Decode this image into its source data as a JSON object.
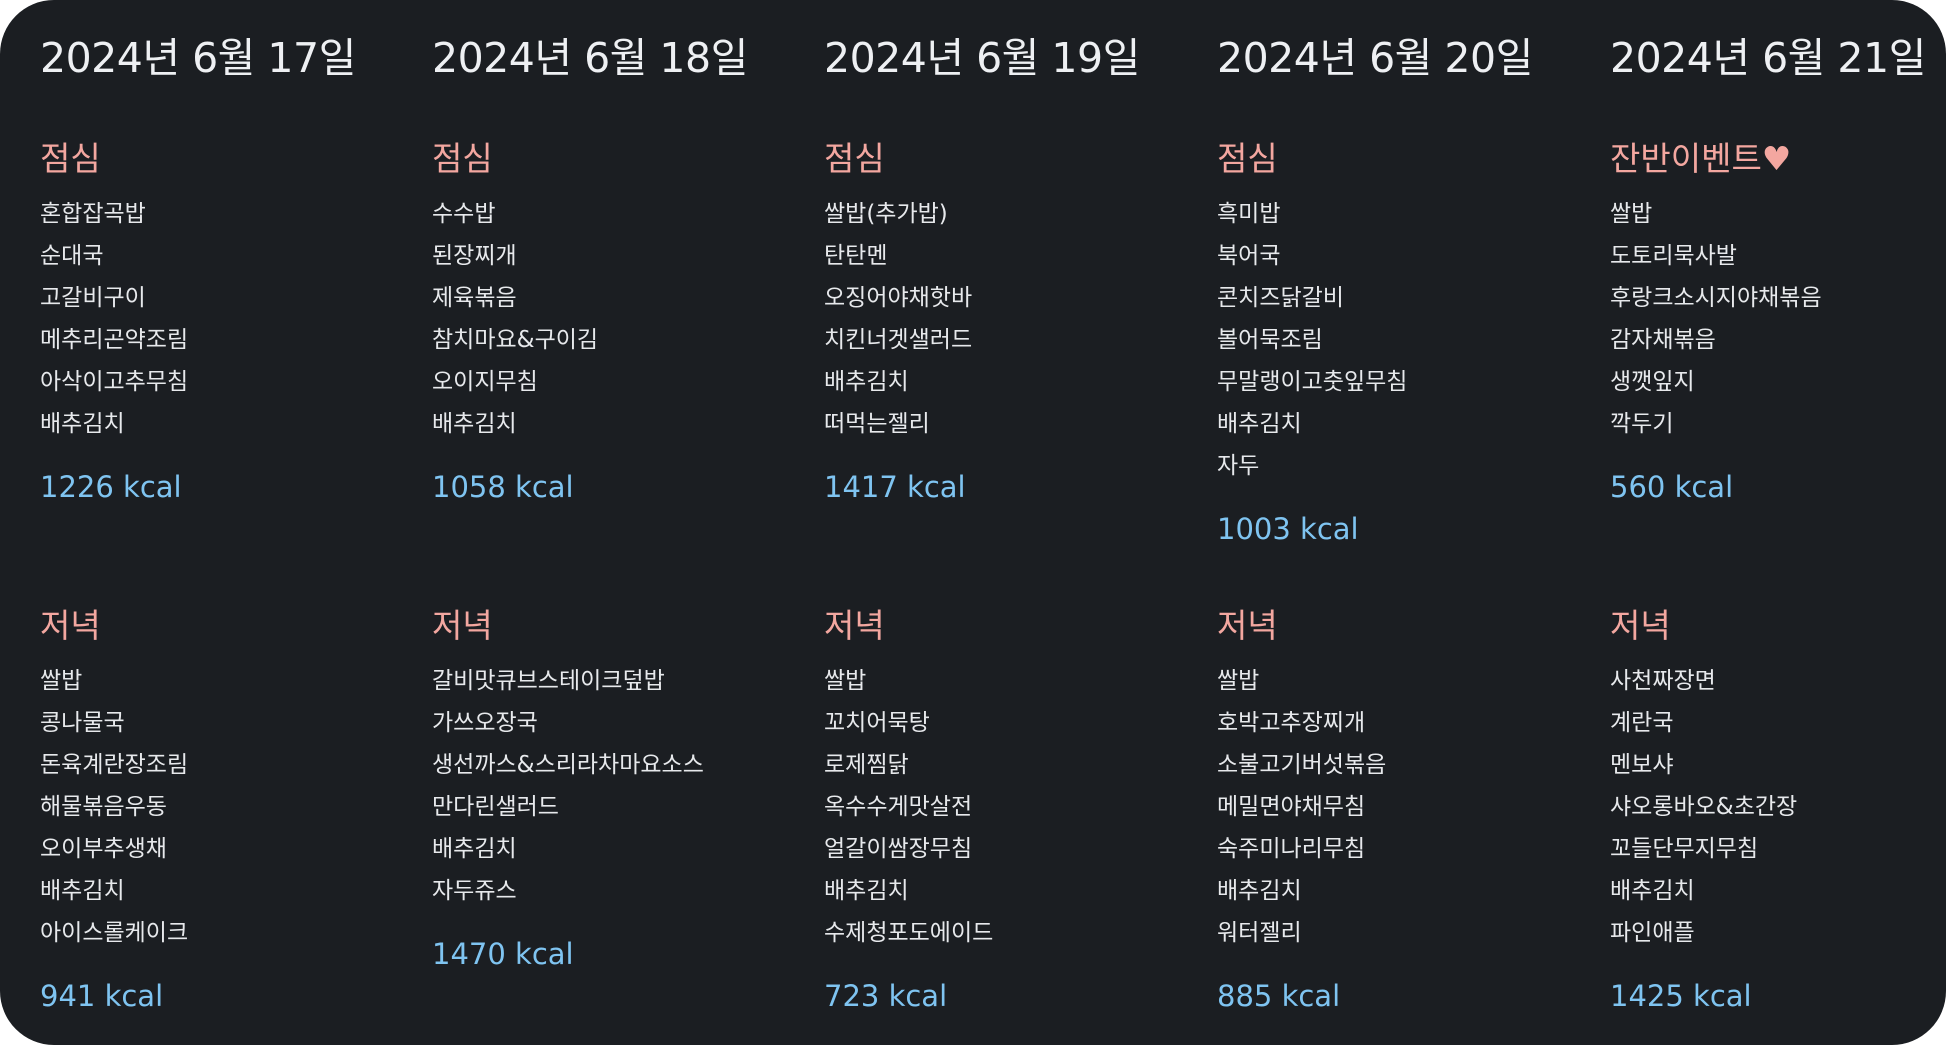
{
  "days": [
    {
      "date": "2024년 6월 17일",
      "lunch": {
        "title": "점심",
        "items": [
          "혼합잡곡밥",
          "순대국",
          "고갈비구이",
          "메추리곤약조림",
          "아삭이고추무침",
          "배추김치"
        ],
        "kcal": "1226 kcal"
      },
      "dinner": {
        "title": "저녁",
        "items": [
          "쌀밥",
          "콩나물국",
          "돈육계란장조림",
          "해물볶음우동",
          "오이부추생채",
          "배추김치",
          "아이스롤케이크"
        ],
        "kcal": "941 kcal"
      }
    },
    {
      "date": "2024년 6월 18일",
      "lunch": {
        "title": "점심",
        "items": [
          "수수밥",
          "된장찌개",
          "제육볶음",
          "참치마요&구이김",
          "오이지무침",
          "배추김치"
        ],
        "kcal": "1058 kcal"
      },
      "dinner": {
        "title": "저녁",
        "items": [
          "갈비맛큐브스테이크덮밥",
          "가쓰오장국",
          "생선까스&스리라차마요소스",
          "만다린샐러드",
          "배추김치",
          "자두쥬스"
        ],
        "kcal": "1470 kcal"
      }
    },
    {
      "date": "2024년 6월 19일",
      "lunch": {
        "title": "점심",
        "items": [
          "쌀밥(추가밥)",
          "탄탄멘",
          "오징어야채핫바",
          "치킨너겟샐러드",
          "배추김치",
          "떠먹는젤리"
        ],
        "kcal": "1417 kcal"
      },
      "dinner": {
        "title": "저녁",
        "items": [
          "쌀밥",
          "꼬치어묵탕",
          "로제찜닭",
          "옥수수게맛살전",
          "얼갈이쌈장무침",
          "배추김치",
          "수제청포도에이드"
        ],
        "kcal": "723 kcal"
      }
    },
    {
      "date": "2024년 6월 20일",
      "lunch": {
        "title": "점심",
        "items": [
          "흑미밥",
          "북어국",
          "콘치즈닭갈비",
          "볼어묵조림",
          "무말랭이고춧잎무침",
          "배추김치",
          "자두"
        ],
        "kcal": "1003 kcal"
      },
      "dinner": {
        "title": "저녁",
        "items": [
          "쌀밥",
          "호박고추장찌개",
          "소불고기버섯볶음",
          "메밀면야채무침",
          "숙주미나리무침",
          "배추김치",
          "워터젤리"
        ],
        "kcal": "885 kcal"
      }
    },
    {
      "date": "2024년 6월 21일",
      "lunch": {
        "title": "잔반이벤트♥",
        "items": [
          "쌀밥",
          "도토리묵사발",
          "후랑크소시지야채볶음",
          "감자채볶음",
          "생깻잎지",
          "깍두기"
        ],
        "kcal": "560 kcal"
      },
      "dinner": {
        "title": "저녁",
        "items": [
          "사천짜장면",
          "계란국",
          "멘보샤",
          "샤오롱바오&초간장",
          "꼬들단무지무침",
          "배추김치",
          "파인애플"
        ],
        "kcal": "1425 kcal"
      }
    }
  ],
  "colors": {
    "background": "#1b1e22",
    "date_text": "#eef0f3",
    "meal_title": "#f3a7a0",
    "item_text": "#e7e9ec",
    "kcal": "#7fc4f1"
  }
}
